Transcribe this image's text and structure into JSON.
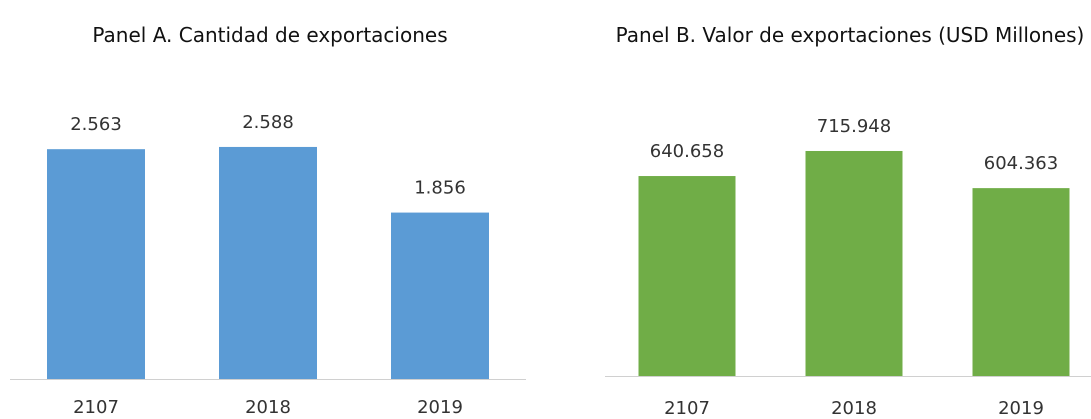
{
  "chart_data": [
    {
      "type": "bar",
      "title": "Panel A. Cantidad de exportaciones",
      "categories": [
        "2107",
        "2018",
        "2019"
      ],
      "values": [
        2563,
        2588,
        1856
      ],
      "value_labels": [
        "2.563",
        "2.588",
        "1.856"
      ],
      "color": "#5b9bd5",
      "ylim": [
        0,
        3000
      ]
    },
    {
      "type": "bar",
      "title": "Panel B. Valor de exportaciones (USD Millones)",
      "categories": [
        "2107",
        "2018",
        "2019"
      ],
      "values": [
        640658,
        715948,
        604363
      ],
      "value_labels": [
        "640.658",
        "715.948",
        "604.363"
      ],
      "color": "#70ad47",
      "ylim": [
        40000,
        800000
      ]
    }
  ]
}
